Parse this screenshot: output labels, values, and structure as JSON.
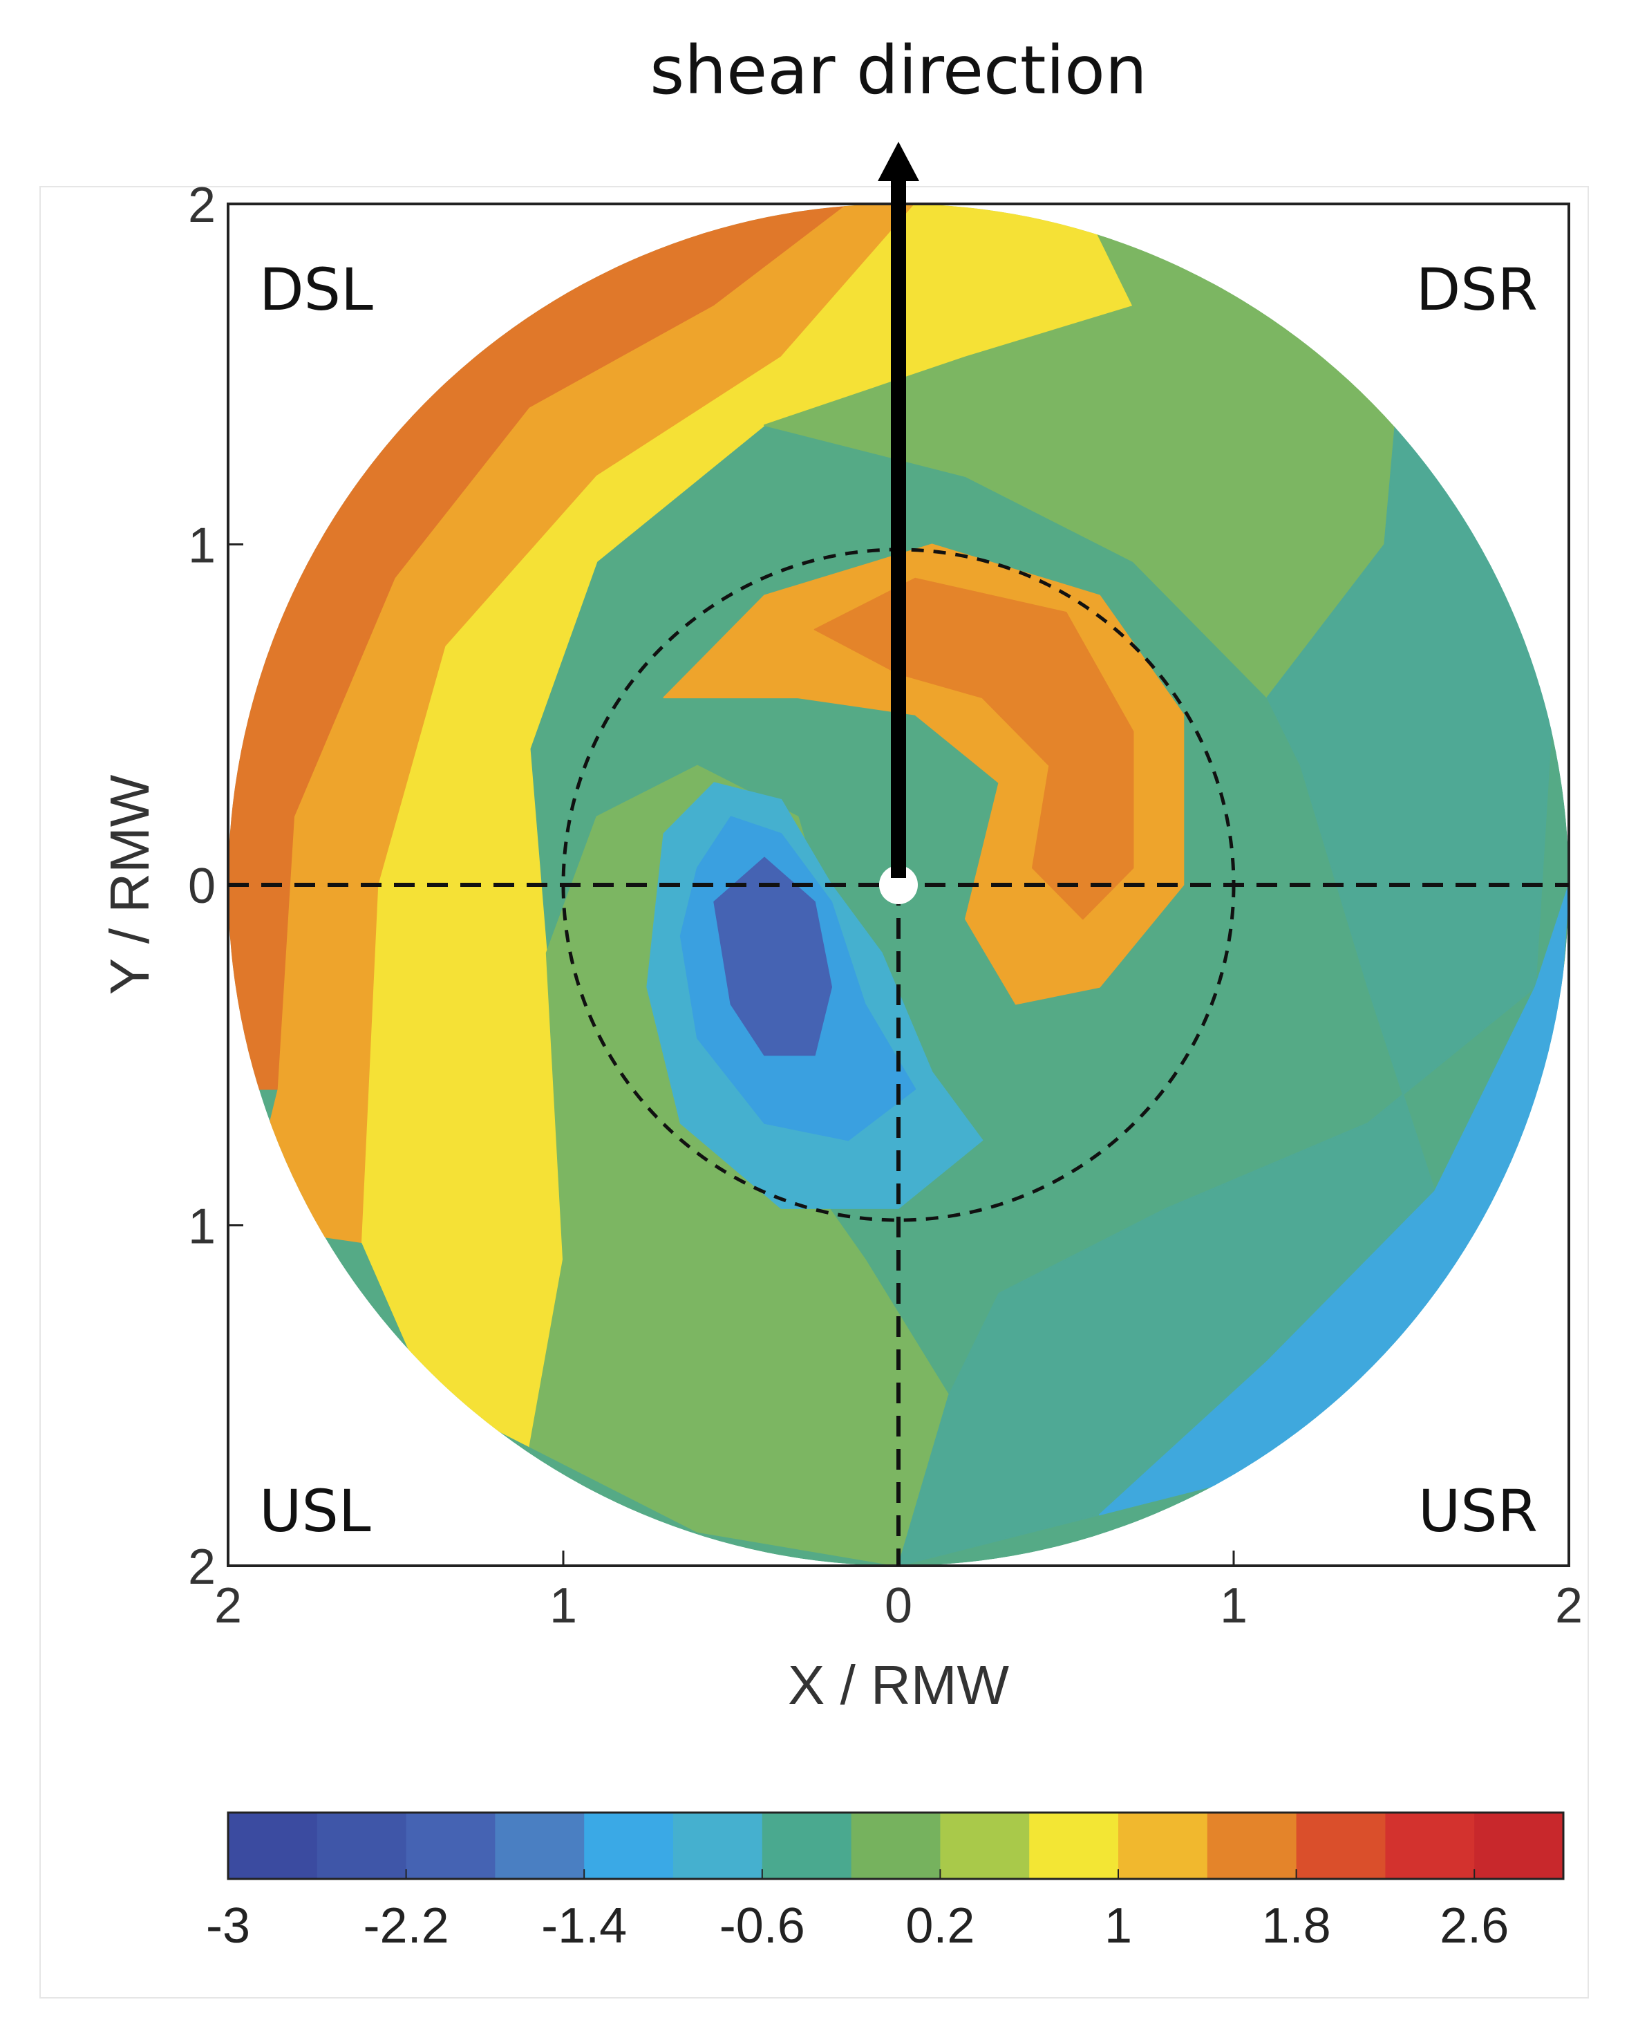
{
  "chart_data": {
    "type": "heatmap",
    "title": "shear direction",
    "xlabel": "X / RMW",
    "ylabel": "Y / RMW",
    "xlim": [
      -2,
      2
    ],
    "ylim": [
      -2,
      2
    ],
    "x_ticks": [
      {
        "value": -2,
        "label": "2"
      },
      {
        "value": -1,
        "label": "1"
      },
      {
        "value": 0,
        "label": "0"
      },
      {
        "value": 1,
        "label": "1"
      },
      {
        "value": 2,
        "label": "2"
      }
    ],
    "y_ticks": [
      {
        "value": 2,
        "label": "2"
      },
      {
        "value": 1,
        "label": "1"
      },
      {
        "value": 0,
        "label": "0"
      },
      {
        "value": -1,
        "label": "1"
      },
      {
        "value": -2,
        "label": "2"
      }
    ],
    "quadrants": [
      {
        "label": "DSL",
        "position": "top-left"
      },
      {
        "label": "DSR",
        "position": "top-right"
      },
      {
        "label": "USL",
        "position": "bottom-left"
      },
      {
        "label": "USR",
        "position": "bottom-right"
      }
    ],
    "rmw_circle_radius": 1,
    "colorbar": {
      "min": -3,
      "max": 3,
      "step": 0.4,
      "tick_labels": [
        "-3",
        "-2.2",
        "-1.4",
        "-0.6",
        "0.2",
        "1",
        "1.8",
        "2.6"
      ],
      "tick_values": [
        -3,
        -2.2,
        -1.4,
        -0.6,
        0.2,
        1,
        1.8,
        2.6
      ],
      "colors": [
        "#3b4ba0",
        "#3f56a8",
        "#4563b3",
        "#4a7fc2",
        "#3aa9e6",
        "#45b0cf",
        "#4aa98f",
        "#76b25e",
        "#a9c94a",
        "#f3e634",
        "#f1b82e",
        "#e4842a",
        "#da4f2b",
        "#d3322e",
        "#c8282c"
      ]
    },
    "field_bands": [
      {
        "level": 2.6,
        "color": "#d83a2c",
        "shape": [
          [
            -2.0,
            0.7
          ],
          [
            -1.55,
            1.5
          ],
          [
            -1.0,
            1.85
          ],
          [
            -0.55,
            2.0
          ],
          [
            -0.9,
            2.0
          ],
          [
            -1.4,
            1.7
          ],
          [
            -1.8,
            1.2
          ],
          [
            -2.0,
            0.9
          ]
        ]
      },
      {
        "level": 1.8,
        "color": "#e0782a",
        "shape": [
          [
            -2.0,
            -0.6
          ],
          [
            -2.0,
            0.7
          ],
          [
            -1.8,
            1.2
          ],
          [
            -1.35,
            1.6
          ],
          [
            -0.8,
            1.85
          ],
          [
            -0.3,
            2.0
          ],
          [
            -0.15,
            2.0
          ],
          [
            -0.55,
            1.7
          ],
          [
            -1.1,
            1.4
          ],
          [
            -1.5,
            0.9
          ],
          [
            -1.8,
            0.2
          ],
          [
            -1.85,
            -0.6
          ]
        ]
      },
      {
        "level": 1.4,
        "color": "#eea42c",
        "shape": [
          [
            -1.95,
            -1.0
          ],
          [
            -1.85,
            -0.6
          ],
          [
            -1.8,
            0.2
          ],
          [
            -1.5,
            0.9
          ],
          [
            -1.1,
            1.4
          ],
          [
            -0.55,
            1.7
          ],
          [
            -0.15,
            2.0
          ],
          [
            0.05,
            2.0
          ],
          [
            -0.35,
            1.55
          ],
          [
            -0.9,
            1.2
          ],
          [
            -1.35,
            0.7
          ],
          [
            -1.55,
            0.0
          ],
          [
            -1.6,
            -1.05
          ]
        ]
      },
      {
        "level": 1.0,
        "color": "#f5e136",
        "shape": [
          [
            -1.6,
            -1.05
          ],
          [
            -1.55,
            0.0
          ],
          [
            -1.35,
            0.7
          ],
          [
            -0.9,
            1.2
          ],
          [
            -0.35,
            1.55
          ],
          [
            0.05,
            2.0
          ],
          [
            0.55,
            2.0
          ],
          [
            0.7,
            1.7
          ],
          [
            0.2,
            1.55
          ],
          [
            -0.4,
            1.35
          ],
          [
            -0.9,
            0.95
          ],
          [
            -1.1,
            0.4
          ],
          [
            -1.05,
            -0.2
          ],
          [
            -1.0,
            -1.1
          ],
          [
            -1.1,
            -1.65
          ],
          [
            -1.4,
            -1.5
          ]
        ]
      },
      {
        "level": 0.2,
        "color": "#7cb662",
        "shape": [
          [
            -1.0,
            -1.1
          ],
          [
            -1.05,
            -0.2
          ],
          [
            -0.9,
            0.2
          ],
          [
            -0.6,
            0.35
          ],
          [
            -0.3,
            0.2
          ],
          [
            -0.15,
            -0.3
          ],
          [
            -0.35,
            -0.75
          ],
          [
            -0.1,
            -1.1
          ],
          [
            0.15,
            -1.5
          ],
          [
            0.0,
            -2.0
          ],
          [
            -0.6,
            -1.9
          ],
          [
            -1.1,
            -1.65
          ]
        ]
      },
      {
        "level": 0.2,
        "color": "#7cb662",
        "shape": [
          [
            0.55,
            2.0
          ],
          [
            1.5,
            1.55
          ],
          [
            1.45,
            1.0
          ],
          [
            1.1,
            0.55
          ],
          [
            0.7,
            0.95
          ],
          [
            0.2,
            1.2
          ],
          [
            -0.4,
            1.35
          ],
          [
            0.2,
            1.55
          ],
          [
            0.7,
            1.7
          ]
        ]
      },
      {
        "level": -0.6,
        "color": "#4fa995",
        "shape": [
          [
            1.45,
            1.0
          ],
          [
            1.5,
            1.55
          ],
          [
            1.8,
            1.15
          ],
          [
            1.95,
            0.5
          ],
          [
            1.9,
            -0.3
          ],
          [
            1.4,
            -0.7
          ],
          [
            0.8,
            -0.95
          ],
          [
            0.3,
            -1.2
          ],
          [
            0.15,
            -1.5
          ],
          [
            0.0,
            -2.0
          ],
          [
            0.6,
            -1.85
          ],
          [
            1.1,
            -1.4
          ],
          [
            1.6,
            -0.9
          ],
          [
            1.4,
            -0.3
          ],
          [
            1.2,
            0.35
          ],
          [
            1.1,
            0.55
          ]
        ]
      },
      {
        "level": -1.0,
        "color": "#3fa8dd",
        "shape": [
          [
            1.9,
            -0.3
          ],
          [
            2.0,
            0.0
          ],
          [
            1.95,
            -0.7
          ],
          [
            1.7,
            -1.2
          ],
          [
            1.2,
            -1.7
          ],
          [
            0.6,
            -1.85
          ],
          [
            1.1,
            -1.4
          ],
          [
            1.6,
            -0.9
          ]
        ]
      },
      {
        "level": -1.4,
        "color": "#4a7fc2",
        "shape": [
          [
            2.0,
            -0.4
          ],
          [
            1.9,
            -1.0
          ],
          [
            1.5,
            -1.55
          ],
          [
            1.0,
            -1.85
          ],
          [
            1.2,
            -1.7
          ],
          [
            1.7,
            -1.2
          ],
          [
            1.95,
            -0.7
          ]
        ]
      },
      {
        "level": 1.4,
        "color": "#eea42c",
        "shape": [
          [
            -0.7,
            0.55
          ],
          [
            -0.4,
            0.85
          ],
          [
            0.1,
            1.0
          ],
          [
            0.6,
            0.85
          ],
          [
            0.85,
            0.5
          ],
          [
            0.85,
            0.0
          ],
          [
            0.6,
            -0.3
          ],
          [
            0.35,
            -0.35
          ],
          [
            0.2,
            -0.1
          ],
          [
            0.3,
            0.3
          ],
          [
            0.05,
            0.5
          ],
          [
            -0.3,
            0.55
          ]
        ]
      },
      {
        "level": 1.8,
        "color": "#e4842a",
        "shape": [
          [
            -0.25,
            0.75
          ],
          [
            0.05,
            0.9
          ],
          [
            0.5,
            0.8
          ],
          [
            0.7,
            0.45
          ],
          [
            0.7,
            0.05
          ],
          [
            0.55,
            -0.1
          ],
          [
            0.4,
            0.05
          ],
          [
            0.45,
            0.35
          ],
          [
            0.25,
            0.55
          ],
          [
            0.0,
            0.62
          ]
        ]
      },
      {
        "level": -0.6,
        "color": "#45b0cf",
        "shape": [
          [
            -0.7,
            0.15
          ],
          [
            -0.55,
            0.3
          ],
          [
            -0.35,
            0.25
          ],
          [
            -0.2,
            0.0
          ],
          [
            -0.05,
            -0.2
          ],
          [
            0.1,
            -0.55
          ],
          [
            0.25,
            -0.75
          ],
          [
            0.0,
            -0.95
          ],
          [
            -0.35,
            -0.95
          ],
          [
            -0.65,
            -0.7
          ],
          [
            -0.75,
            -0.3
          ]
        ]
      },
      {
        "level": -1.0,
        "color": "#3aa0e0",
        "shape": [
          [
            -0.6,
            0.05
          ],
          [
            -0.5,
            0.2
          ],
          [
            -0.35,
            0.15
          ],
          [
            -0.2,
            -0.05
          ],
          [
            -0.1,
            -0.35
          ],
          [
            0.05,
            -0.6
          ],
          [
            -0.15,
            -0.75
          ],
          [
            -0.4,
            -0.7
          ],
          [
            -0.6,
            -0.45
          ],
          [
            -0.65,
            -0.15
          ]
        ]
      },
      {
        "level": -2.2,
        "color": "#4563b3",
        "shape": [
          [
            -0.55,
            -0.05
          ],
          [
            -0.4,
            0.08
          ],
          [
            -0.25,
            -0.05
          ],
          [
            -0.2,
            -0.3
          ],
          [
            -0.25,
            -0.5
          ],
          [
            -0.4,
            -0.5
          ],
          [
            -0.5,
            -0.35
          ]
        ]
      }
    ]
  }
}
